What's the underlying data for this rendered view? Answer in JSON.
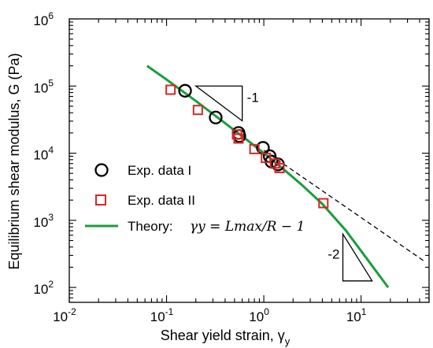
{
  "chart_data": {
    "type": "scatter",
    "x_scale": "log",
    "y_scale": "log",
    "xlim": [
      0.01,
      50
    ],
    "ylim": [
      60,
      1000000
    ],
    "xlabel": "Shear yield strain, γ",
    "xlabel_sub": "y",
    "ylabel": "Equilibrium shear modulus, G (Pa)",
    "x_ticks": [
      {
        "value": 0.01,
        "base": "10",
        "exp": "-2"
      },
      {
        "value": 0.1,
        "base": "10",
        "exp": "-1"
      },
      {
        "value": 1,
        "base": "10",
        "exp": "0"
      },
      {
        "value": 10,
        "base": "10",
        "exp": "1"
      }
    ],
    "y_ticks": [
      {
        "value": 100,
        "base": "10",
        "exp": "2"
      },
      {
        "value": 1000,
        "base": "10",
        "exp": "3"
      },
      {
        "value": 10000,
        "base": "10",
        "exp": "4"
      },
      {
        "value": 100000,
        "base": "10",
        "exp": "5"
      },
      {
        "value": 1000000,
        "base": "10",
        "exp": "6"
      }
    ],
    "grid": false,
    "legend_position": "center-left",
    "series": [
      {
        "name": "Exp. data I",
        "marker": "circle",
        "color": "#000000",
        "points": [
          {
            "x": 0.155,
            "y": 85000
          },
          {
            "x": 0.32,
            "y": 34000
          },
          {
            "x": 0.55,
            "y": 20000
          },
          {
            "x": 0.56,
            "y": 18000
          },
          {
            "x": 0.98,
            "y": 12000
          },
          {
            "x": 1.15,
            "y": 9000
          },
          {
            "x": 1.2,
            "y": 7500
          },
          {
            "x": 1.4,
            "y": 6800
          }
        ]
      },
      {
        "name": "Exp. data II",
        "marker": "square",
        "color": "#d62728",
        "points": [
          {
            "x": 0.11,
            "y": 88000
          },
          {
            "x": 0.21,
            "y": 44000
          },
          {
            "x": 0.53,
            "y": 19000
          },
          {
            "x": 0.55,
            "y": 16500
          },
          {
            "x": 0.8,
            "y": 11500
          },
          {
            "x": 1.05,
            "y": 8500
          },
          {
            "x": 1.3,
            "y": 7000
          },
          {
            "x": 1.45,
            "y": 6000
          },
          {
            "x": 4.1,
            "y": 1800
          }
        ]
      },
      {
        "name": "Theory:",
        "name_math": "γy = Lmax/R − 1",
        "type": "line",
        "color": "#1a9e3c",
        "points": [
          {
            "x": 0.063,
            "y": 200000
          },
          {
            "x": 0.1,
            "y": 125000
          },
          {
            "x": 0.2,
            "y": 60000
          },
          {
            "x": 0.4,
            "y": 28000
          },
          {
            "x": 0.7,
            "y": 15000
          },
          {
            "x": 1.0,
            "y": 10000
          },
          {
            "x": 1.5,
            "y": 6200
          },
          {
            "x": 2.5,
            "y": 3300
          },
          {
            "x": 4.0,
            "y": 1750
          },
          {
            "x": 7.0,
            "y": 700
          },
          {
            "x": 11.0,
            "y": 290
          },
          {
            "x": 19.0,
            "y": 100
          }
        ]
      },
      {
        "type": "line",
        "style": "dashed",
        "color": "#000000",
        "points": [
          {
            "x": 1.0,
            "y": 11000
          },
          {
            "x": 45.0,
            "y": 244
          }
        ]
      }
    ],
    "annotations": [
      {
        "text": "-1",
        "type": "slope-triangle",
        "slope": -1,
        "x0": 0.2,
        "x1": 0.6,
        "y": 100000
      },
      {
        "text": "-2",
        "type": "slope-triangle",
        "slope": -2,
        "x0": 6.5,
        "x1": 13,
        "y": 125
      }
    ]
  }
}
